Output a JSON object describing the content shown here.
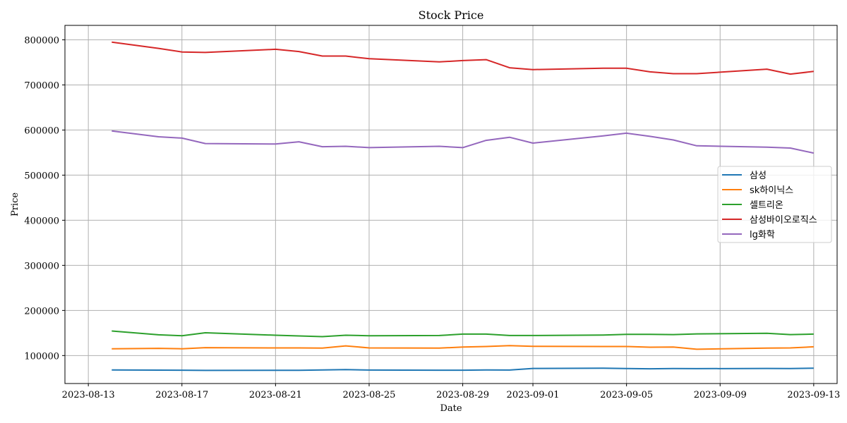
{
  "chart_data": {
    "type": "line",
    "title": "Stock Price",
    "xlabel": "Date",
    "ylabel": "Price",
    "xlim": [
      "2023-08-12",
      "2023-09-14"
    ],
    "ylim": [
      38000,
      832000
    ],
    "x_ticks": [
      "2023-08-13",
      "2023-08-17",
      "2023-08-21",
      "2023-08-25",
      "2023-08-29",
      "2023-09-01",
      "2023-09-05",
      "2023-09-09",
      "2023-09-13"
    ],
    "y_ticks": [
      100000,
      200000,
      300000,
      400000,
      500000,
      600000,
      700000,
      800000
    ],
    "grid": true,
    "legend_position": "center-right",
    "x": [
      "2023-08-14",
      "2023-08-16",
      "2023-08-17",
      "2023-08-18",
      "2023-08-21",
      "2023-08-22",
      "2023-08-23",
      "2023-08-24",
      "2023-08-25",
      "2023-08-28",
      "2023-08-29",
      "2023-08-30",
      "2023-08-31",
      "2023-09-01",
      "2023-09-04",
      "2023-09-05",
      "2023-09-06",
      "2023-09-07",
      "2023-09-08",
      "2023-09-11",
      "2023-09-12",
      "2023-09-13"
    ],
    "series": [
      {
        "name": "삼성",
        "color": "#1f77b4",
        "values": [
          68000,
          67700,
          67500,
          67000,
          67300,
          67400,
          68000,
          69000,
          67800,
          67600,
          67600,
          68000,
          67900,
          71500,
          72000,
          71300,
          70700,
          71100,
          71000,
          71500,
          71100,
          72000
        ]
      },
      {
        "name": "sk하이닉스",
        "color": "#ff7f0e",
        "values": [
          115000,
          116000,
          115000,
          117500,
          117000,
          117000,
          116500,
          121500,
          117000,
          116500,
          119000,
          120000,
          122000,
          120500,
          120000,
          120000,
          118500,
          118800,
          114000,
          116500,
          117000,
          119500
        ]
      },
      {
        "name": "셀트리온",
        "color": "#2ca02c",
        "values": [
          154500,
          146000,
          144000,
          150500,
          145000,
          143500,
          142000,
          145000,
          144000,
          144500,
          147500,
          147500,
          144500,
          144500,
          145500,
          147000,
          147000,
          146500,
          148000,
          149500,
          146500,
          147500
        ]
      },
      {
        "name": "삼성바이오로직스",
        "color": "#d62728",
        "values": [
          795000,
          781000,
          773000,
          772000,
          779000,
          774000,
          764000,
          764000,
          758000,
          751000,
          754000,
          756000,
          738000,
          734000,
          737000,
          737000,
          729000,
          725000,
          725000,
          735000,
          724000,
          730000
        ]
      },
      {
        "name": "lg화학",
        "color": "#9467bd",
        "values": [
          598000,
          585000,
          582000,
          570000,
          569000,
          574000,
          563000,
          564000,
          561000,
          564000,
          561000,
          577000,
          584000,
          571000,
          587000,
          593000,
          586000,
          578000,
          565000,
          562000,
          560000,
          549000
        ]
      }
    ]
  }
}
